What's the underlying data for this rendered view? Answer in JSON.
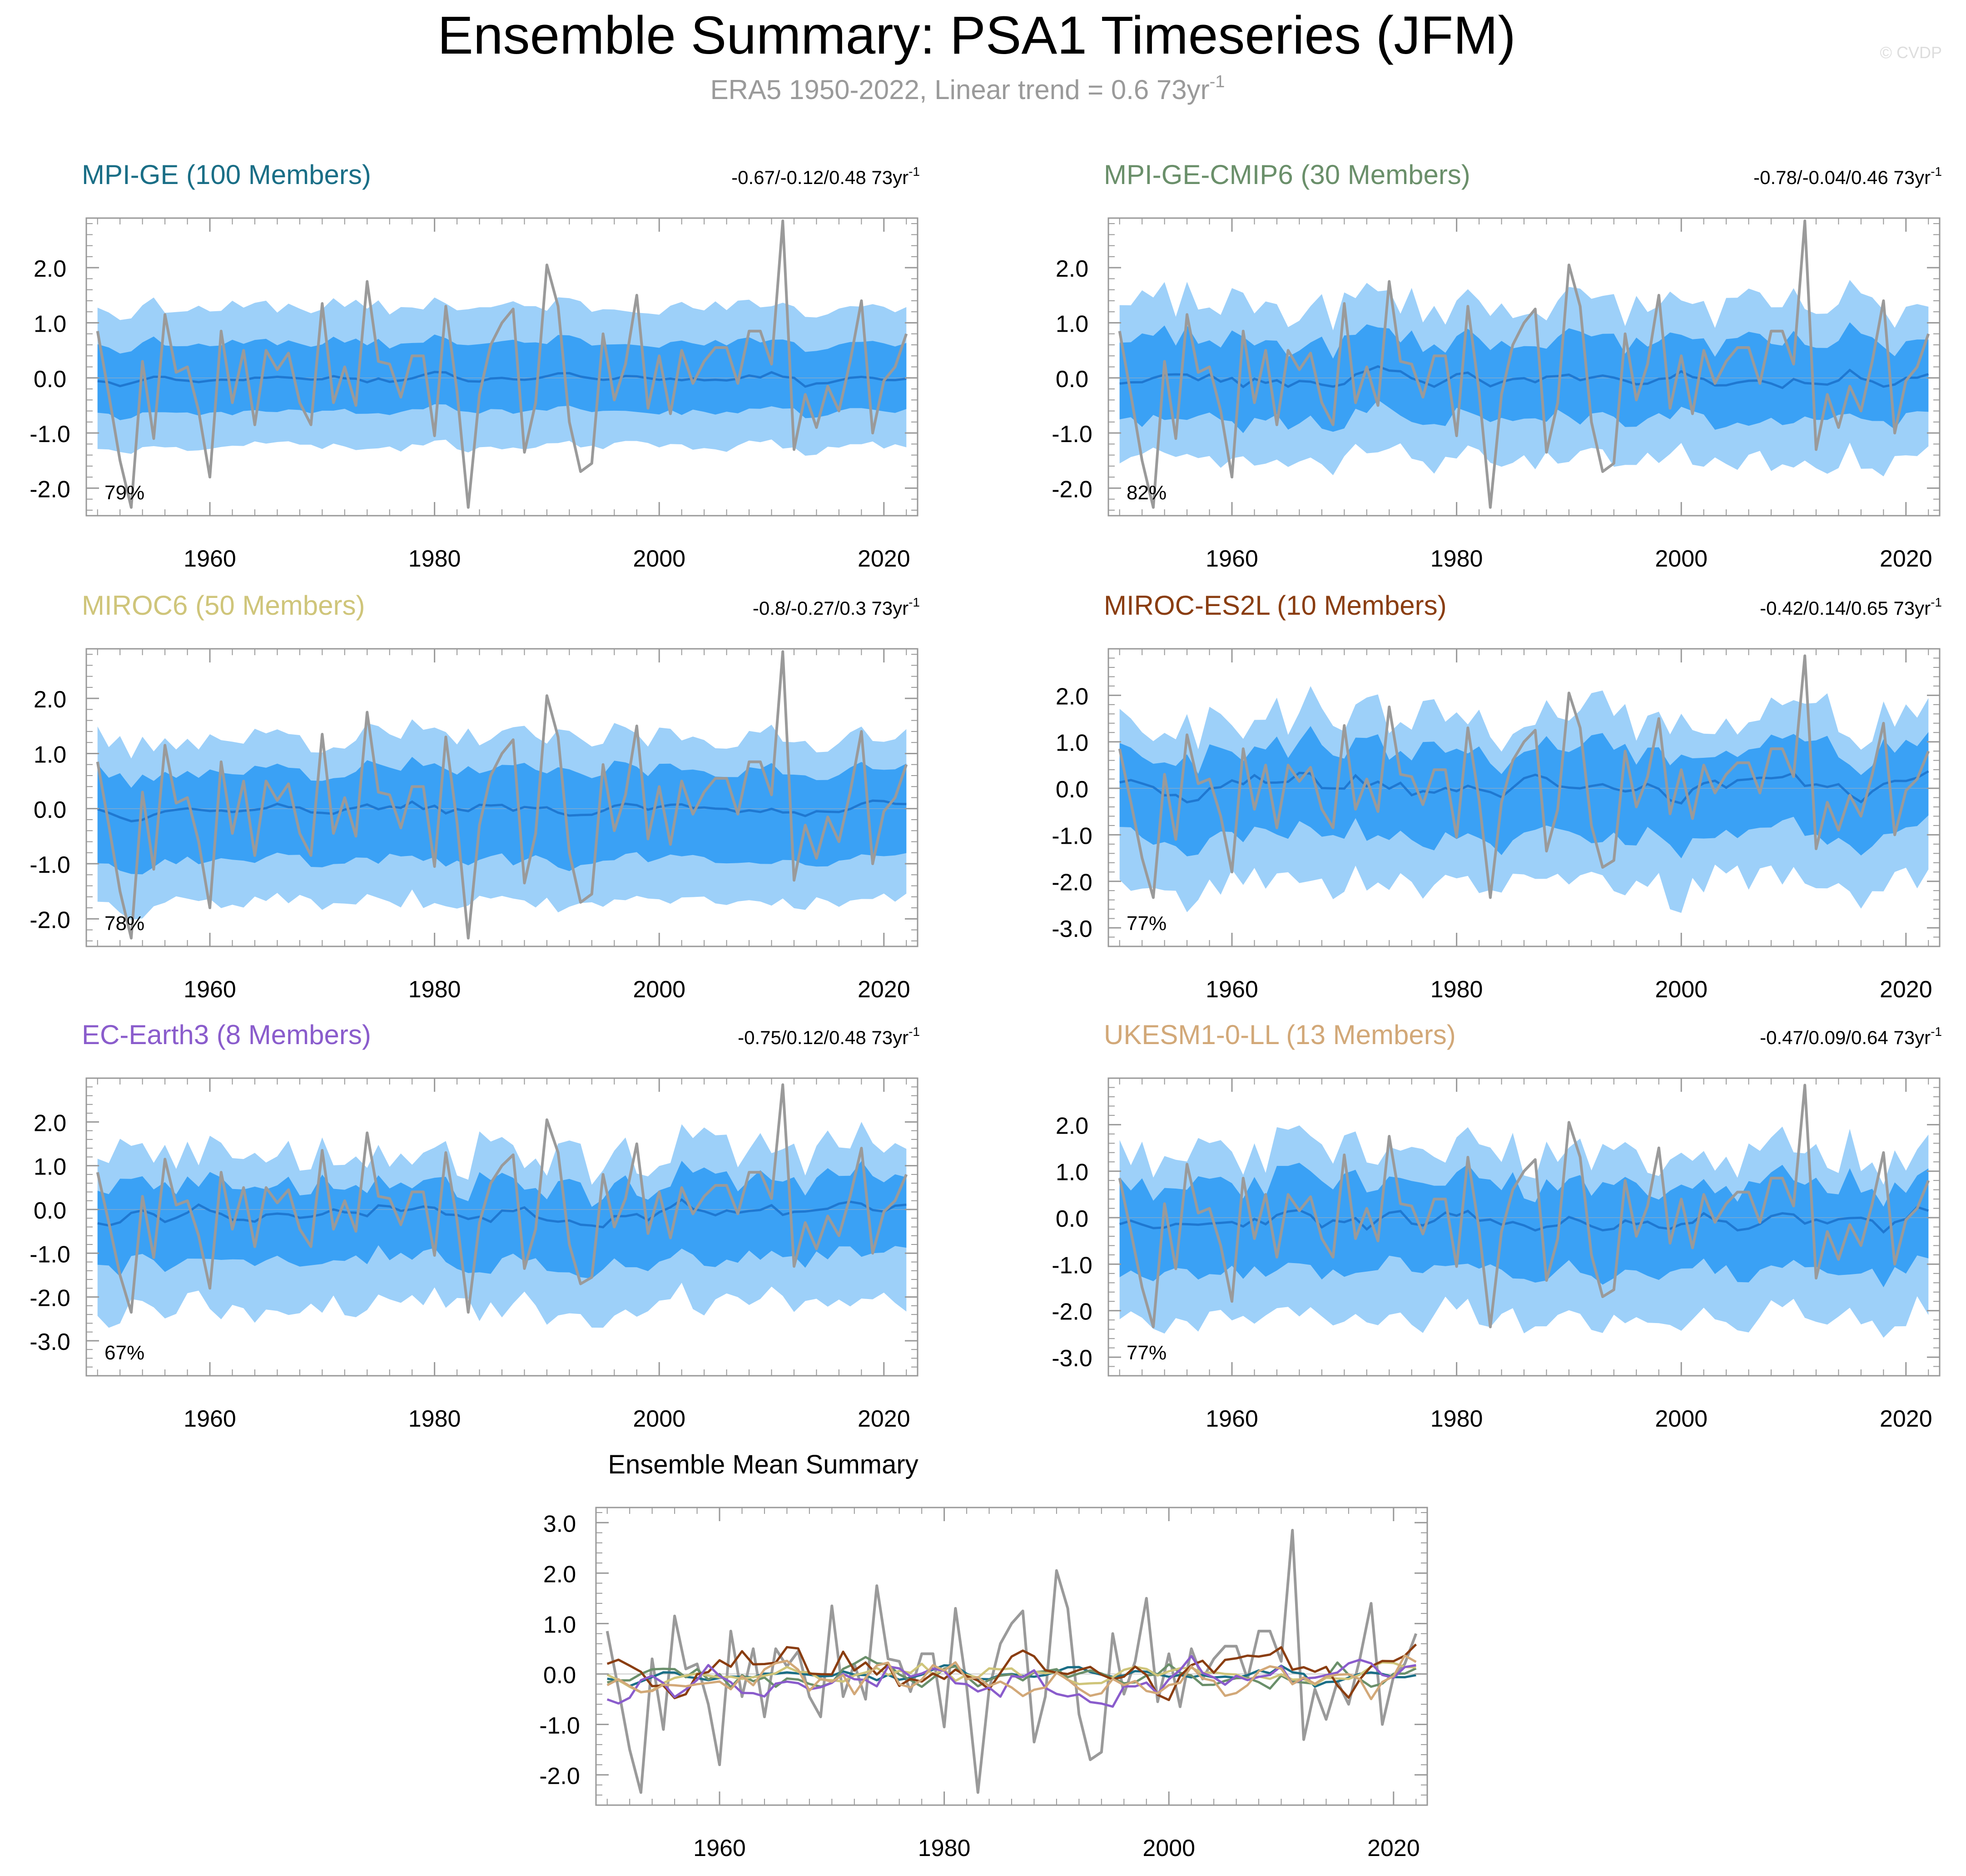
{
  "title": "Ensemble Summary: PSA1 Timeseries (JFM)",
  "subtitle": {
    "text": "ERA5 1950-2022, Linear trend = 0.6 73yr",
    "superscript": "-1"
  },
  "watermark": "© CVDP",
  "trend_unit": "73yr",
  "trend_unit_superscript": "-1",
  "colors": {
    "outer_band": "#9dd0f9",
    "inner_band": "#3aa1f5",
    "ensemble_mean": "#1f78d1",
    "observed": "#9a9a9a",
    "axis": "#999999"
  },
  "chart_data": [
    {
      "type": "line",
      "panel": "MPI-GE",
      "title": "MPI-GE (100 Members)",
      "title_color": "#1a6e86",
      "trend_label": "-0.67/-0.12/0.48 73yr",
      "percent_label": "79%",
      "xlim": [
        1949,
        2023
      ],
      "ylim": [
        -2.5,
        2.9
      ],
      "yticks": [
        2.0,
        1.0,
        0.0,
        -1.0,
        -2.0
      ],
      "ytick_labels": [
        "2.0",
        "1.0",
        "0.0",
        "-1.0",
        "-2.0"
      ],
      "xticks": [
        1960,
        1980,
        2000,
        2020
      ],
      "xtick_labels": [
        "1960",
        "1980",
        "2000",
        "2020"
      ],
      "band_model": {
        "outer_hi": 1.3,
        "outer_lo": -1.15,
        "inner_hi": 0.65,
        "inner_lo": -0.55,
        "amp": 0.12,
        "mean_scale": 0.15,
        "seed": 11
      }
    },
    {
      "type": "line",
      "panel": "MPI-GE-CMIP6",
      "title": "MPI-GE-CMIP6 (30 Members)",
      "title_color": "#6a8f6a",
      "trend_label": "-0.78/-0.04/0.46 73yr",
      "percent_label": "82%",
      "xlim": [
        1949,
        2023
      ],
      "ylim": [
        -2.5,
        2.9
      ],
      "yticks": [
        2.0,
        1.0,
        0.0,
        -1.0,
        -2.0
      ],
      "ytick_labels": [
        "2.0",
        "1.0",
        "0.0",
        "-1.0",
        "-2.0"
      ],
      "xticks": [
        1960,
        1980,
        2000,
        2020
      ],
      "xtick_labels": [
        "1960",
        "1980",
        "2000",
        "2020"
      ],
      "band_model": {
        "outer_hi": 1.35,
        "outer_lo": -1.25,
        "inner_hi": 0.7,
        "inner_lo": -0.6,
        "amp": 0.3,
        "mean_scale": 0.3,
        "seed": 23
      }
    },
    {
      "type": "line",
      "panel": "MIROC6",
      "title": "MIROC6 (50 Members)",
      "title_color": "#cfc57a",
      "trend_label": "-0.8/-0.27/0.3 73yr",
      "percent_label": "78%",
      "xlim": [
        1949,
        2023
      ],
      "ylim": [
        -2.5,
        2.9
      ],
      "yticks": [
        2.0,
        1.0,
        0.0,
        -1.0,
        -2.0
      ],
      "ytick_labels": [
        "2.0",
        "1.0",
        "0.0",
        "-1.0",
        "-2.0"
      ],
      "xticks": [
        1960,
        1980,
        2000,
        2020
      ],
      "xtick_labels": [
        "1960",
        "1980",
        "2000",
        "2020"
      ],
      "band_model": {
        "outer_hi": 1.3,
        "outer_lo": -1.55,
        "inner_hi": 0.7,
        "inner_lo": -0.85,
        "amp": 0.2,
        "mean_scale": 0.2,
        "seed": 37
      }
    },
    {
      "type": "line",
      "panel": "MIROC-ES2L",
      "title": "MIROC-ES2L (10 Members)",
      "title_color": "#8a3d10",
      "trend_label": "-0.42/0.14/0.65 73yr",
      "percent_label": "77%",
      "xlim": [
        1949,
        2023
      ],
      "ylim": [
        -3.4,
        3.0
      ],
      "yticks": [
        2.0,
        1.0,
        0.0,
        -1.0,
        -2.0,
        -3.0
      ],
      "ytick_labels": [
        "2.0",
        "1.0",
        "0.0",
        "-1.0",
        "-2.0",
        "-3.0"
      ],
      "xticks": [
        1960,
        1980,
        2000,
        2020
      ],
      "xtick_labels": [
        "1960",
        "1980",
        "2000",
        "2020"
      ],
      "band_model": {
        "outer_hi": 1.5,
        "outer_lo": -1.8,
        "inner_hi": 0.8,
        "inner_lo": -0.9,
        "amp": 0.45,
        "mean_scale": 0.45,
        "seed": 41
      }
    },
    {
      "type": "line",
      "panel": "EC-Earth3",
      "title": "EC-Earth3 (8 Members)",
      "title_color": "#8a5ccc",
      "trend_label": "-0.75/0.12/0.48 73yr",
      "percent_label": "67%",
      "xlim": [
        1949,
        2023
      ],
      "ylim": [
        -3.8,
        3.0
      ],
      "yticks": [
        2.0,
        1.0,
        0.0,
        -1.0,
        -2.0,
        -3.0
      ],
      "ytick_labels": [
        "2.0",
        "1.0",
        "0.0",
        "-1.0",
        "-2.0",
        "-3.0"
      ],
      "xticks": [
        1960,
        1980,
        2000,
        2020
      ],
      "xtick_labels": [
        "1960",
        "1980",
        "2000",
        "2020"
      ],
      "band_model": {
        "outer_hi": 1.4,
        "outer_lo": -1.8,
        "inner_hi": 0.7,
        "inner_lo": -0.9,
        "amp": 0.5,
        "mean_scale": 0.5,
        "seed": 53
      }
    },
    {
      "type": "line",
      "panel": "UKESM1-0-LL",
      "title": "UKESM1-0-LL (13 Members)",
      "title_color": "#d2a878",
      "trend_label": "-0.47/0.09/0.64 73yr",
      "percent_label": "77%",
      "xlim": [
        1949,
        2023
      ],
      "ylim": [
        -3.4,
        3.0
      ],
      "yticks": [
        2.0,
        1.0,
        0.0,
        -1.0,
        -2.0,
        -3.0
      ],
      "ytick_labels": [
        "2.0",
        "1.0",
        "0.0",
        "-1.0",
        "-2.0",
        "-3.0"
      ],
      "xticks": [
        1960,
        1980,
        2000,
        2020
      ],
      "xtick_labels": [
        "1960",
        "1980",
        "2000",
        "2020"
      ],
      "band_model": {
        "outer_hi": 1.45,
        "outer_lo": -1.8,
        "inner_hi": 0.8,
        "inner_lo": -0.9,
        "amp": 0.4,
        "mean_scale": 0.4,
        "seed": 67
      }
    },
    {
      "type": "line",
      "panel": "Ensemble Mean Summary",
      "title": "Ensemble Mean Summary",
      "xlim": [
        1949,
        2023
      ],
      "ylim": [
        -2.6,
        3.3
      ],
      "yticks": [
        3.0,
        2.0,
        1.0,
        0.0,
        -1.0,
        -2.0
      ],
      "ytick_labels": [
        "3.0",
        "2.0",
        "1.0",
        "0.0",
        "-1.0",
        "-2.0"
      ],
      "xticks": [
        1960,
        1980,
        2000,
        2020
      ],
      "xtick_labels": [
        "1960",
        "1980",
        "2000",
        "2020"
      ],
      "series_colors": [
        "#1a6e86",
        "#6a8f6a",
        "#cfc57a",
        "#8a3d10",
        "#8a5ccc",
        "#d2a878"
      ]
    }
  ],
  "observed_series": {
    "name": "ERA5",
    "x_start": 1950,
    "values": [
      0.85,
      -0.3,
      -1.5,
      -2.35,
      0.3,
      -1.1,
      1.15,
      0.1,
      0.2,
      -0.6,
      -1.8,
      0.85,
      -0.45,
      0.5,
      -0.85,
      0.5,
      0.15,
      0.45,
      -0.45,
      -0.85,
      1.35,
      -0.45,
      0.2,
      -0.5,
      1.75,
      0.3,
      0.25,
      -0.35,
      0.4,
      0.4,
      -1.05,
      1.3,
      -0.25,
      -2.35,
      -0.3,
      0.6,
      1.0,
      1.25,
      -1.35,
      -0.45,
      2.05,
      1.3,
      -0.8,
      -1.7,
      -1.55,
      0.8,
      -0.4,
      0.25,
      1.5,
      -0.55,
      0.4,
      -0.65,
      0.5,
      -0.1,
      0.3,
      0.55,
      0.55,
      -0.1,
      0.85,
      0.85,
      0.25,
      2.85,
      -1.3,
      -0.3,
      -0.9,
      -0.15,
      -0.6,
      0.3,
      1.4,
      -1.0,
      -0.05,
      0.2,
      0.8
    ]
  }
}
